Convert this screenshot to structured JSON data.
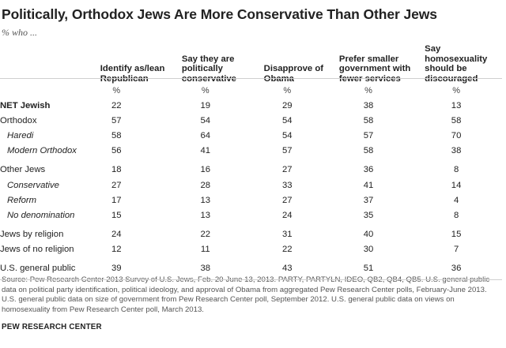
{
  "title": "Politically, Orthodox Jews Are More Conservative Than Other Jews",
  "subtitle": "% who ...",
  "chart_data": {
    "type": "table",
    "columns": [
      "Identify as/lean Republican",
      "Say they are politically conservative",
      "Disapprove of Obama",
      "Prefer smaller government with fewer services",
      "Say homosexuality should be discouraged"
    ],
    "header_lines": [
      [
        "Identify as/lean",
        "Republican"
      ],
      [
        "Say they are",
        "politically",
        "conservative"
      ],
      [
        "Disapprove of",
        "Obama"
      ],
      [
        "Prefer smaller",
        "government with",
        "fewer services"
      ],
      [
        "Say homosexuality",
        "should be",
        "discouraged"
      ]
    ],
    "unit_row": [
      "%",
      "%",
      "%",
      "%",
      "%"
    ],
    "rows": [
      {
        "label": "NET Jewish",
        "values": [
          "22",
          "19",
          "29",
          "38",
          "13"
        ]
      },
      {
        "label": "Orthodox",
        "values": [
          "57",
          "54",
          "54",
          "58",
          "58"
        ]
      },
      {
        "label": "Haredi",
        "values": [
          "58",
          "64",
          "54",
          "57",
          "70"
        ]
      },
      {
        "label": "Modern Orthodox",
        "values": [
          "56",
          "41",
          "57",
          "58",
          "38"
        ]
      },
      {
        "label": "Other Jews",
        "values": [
          "18",
          "16",
          "27",
          "36",
          "8"
        ]
      },
      {
        "label": "Conservative",
        "values": [
          "27",
          "28",
          "33",
          "41",
          "14"
        ]
      },
      {
        "label": "Reform",
        "values": [
          "17",
          "13",
          "27",
          "37",
          "4"
        ]
      },
      {
        "label": "No denomination",
        "values": [
          "15",
          "13",
          "24",
          "35",
          "8"
        ]
      },
      {
        "label": "Jews by religion",
        "values": [
          "24",
          "22",
          "31",
          "40",
          "15"
        ]
      },
      {
        "label": "Jews of no religion",
        "values": [
          "12",
          "11",
          "22",
          "30",
          "7"
        ]
      },
      {
        "label": "U.S. general public",
        "values": [
          "39",
          "38",
          "43",
          "51",
          "36"
        ]
      }
    ]
  },
  "source": "Source: Pew Research Center 2013 Survey of U.S. Jews, Feb. 20-June 13, 2013. PARTY, PARTYLN, IDEO, QB2, QB4, QB5. U.S. general public data on political party identification, political ideology, and approval of Obama from aggregated Pew Research Center polls, February-June 2013. U.S. general public data on size of government from Pew Research Center poll, September 2012. U.S. general public data on views on homosexuality from Pew Research Center poll, March 2013.",
  "brand": "PEW RESEARCH CENTER"
}
